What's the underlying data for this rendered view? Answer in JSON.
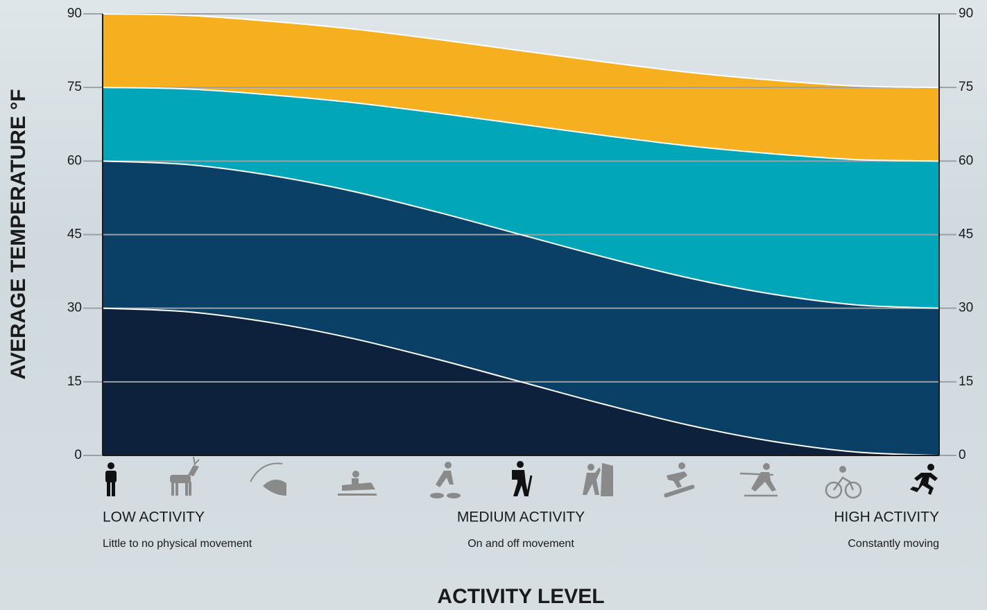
{
  "chart_data": {
    "type": "area",
    "stacked": true,
    "smooth": true,
    "ylabel": "AVERAGE TEMPERATURE °F",
    "xlabel": "ACTIVITY LEVEL",
    "categories": [
      null,
      null,
      null,
      null,
      null,
      null,
      null,
      null,
      null,
      null,
      null
    ],
    "series": [
      {
        "color": "#0d213d",
        "values": [
          30,
          29.3,
          27.1,
          23.8,
          19.6,
          15,
          10.4,
          6.2,
          2.9,
          0.7,
          0
        ]
      },
      {
        "color": "#0a3f66",
        "values": [
          30,
          30,
          30,
          30,
          30,
          30,
          30,
          30,
          30,
          30,
          30
        ]
      },
      {
        "color": "#02a6b9",
        "values": [
          15,
          15.4,
          16.4,
          18.1,
          20.2,
          22.5,
          24.8,
          26.9,
          28.6,
          29.6,
          30
        ]
      },
      {
        "color": "#f5af1f",
        "values": [
          15,
          15,
          15,
          15,
          15,
          15,
          15,
          15,
          15,
          15,
          15
        ]
      }
    ],
    "ylim": [
      0,
      90
    ],
    "yticks": [
      0,
      15,
      30,
      45,
      60,
      75,
      90
    ],
    "y2lim": [
      0,
      90
    ],
    "y2ticks": [
      0,
      15,
      30,
      45,
      60,
      75,
      90
    ],
    "grid": true,
    "activity_labels": [
      {
        "title": "LOW ACTIVITY",
        "subtitle": "Little to no physical movement"
      },
      {
        "title": "MEDIUM ACTIVITY",
        "subtitle": "On and off movement"
      },
      {
        "title": "HIGH ACTIVITY",
        "subtitle": "Constantly moving"
      }
    ]
  }
}
